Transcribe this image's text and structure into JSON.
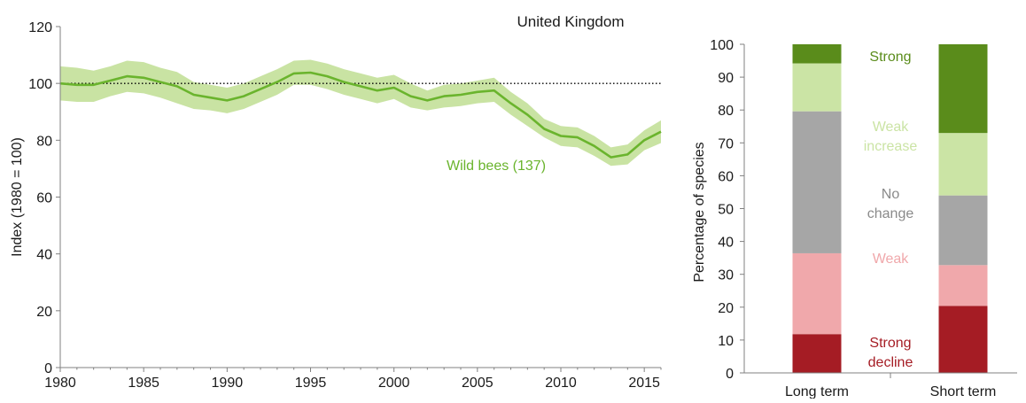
{
  "chart_data": [
    {
      "type": "line",
      "title": "United Kingdom",
      "xlabel": "",
      "ylabel": "Index (1980 = 100)",
      "xlim": [
        1980,
        2016
      ],
      "ylim": [
        0,
        120
      ],
      "x_ticks": [
        1980,
        1985,
        1990,
        1995,
        2000,
        2005,
        2010,
        2015
      ],
      "y_ticks": [
        0,
        20,
        40,
        60,
        80,
        100,
        120
      ],
      "reference_line": 100,
      "grid": false,
      "series": [
        {
          "name": "Wild bees (137)",
          "color": "#6ab42d",
          "band_color": "#c9e3a3",
          "x": [
            1980,
            1981,
            1982,
            1983,
            1984,
            1985,
            1986,
            1987,
            1988,
            1989,
            1990,
            1991,
            1992,
            1993,
            1994,
            1995,
            1996,
            1997,
            1998,
            1999,
            2000,
            2001,
            2002,
            2003,
            2004,
            2005,
            2006,
            2007,
            2008,
            2009,
            2010,
            2011,
            2012,
            2013,
            2014,
            2015,
            2016
          ],
          "y": [
            100,
            99.5,
            99.5,
            101,
            102.5,
            102,
            100.5,
            99,
            96,
            95,
            94,
            95.5,
            98,
            100.5,
            103.5,
            103.8,
            102.5,
            100.5,
            99,
            97.5,
            98.5,
            95.5,
            94,
            95.5,
            96,
            97,
            97.5,
            93,
            89,
            84,
            81.5,
            81,
            78,
            74,
            75,
            80,
            83
          ],
          "lower": [
            94,
            93.5,
            93.5,
            95.5,
            97,
            96.5,
            95,
            93,
            91,
            90.5,
            89.5,
            91,
            93.5,
            96,
            99.5,
            99.5,
            98,
            96,
            94.5,
            93,
            94.5,
            91.5,
            90.5,
            91.5,
            92,
            93,
            93.5,
            89,
            85,
            81,
            78,
            77.5,
            74.5,
            71,
            71.5,
            76.5,
            79
          ],
          "upper": [
            106,
            105.5,
            104.5,
            106,
            108,
            107.5,
            105.5,
            104,
            100.5,
            99.5,
            98.5,
            100,
            102.5,
            105,
            108,
            108.3,
            107,
            105,
            103.5,
            102,
            103,
            100,
            97.5,
            99.5,
            100,
            101,
            102,
            97,
            93,
            87.5,
            85,
            84.5,
            81.5,
            77.5,
            78.5,
            83.5,
            87
          ]
        }
      ]
    },
    {
      "type": "bar",
      "stacked": true,
      "xlabel": "",
      "ylabel": "Percentage of species",
      "ylim": [
        0,
        100
      ],
      "y_ticks": [
        0,
        10,
        20,
        30,
        40,
        50,
        60,
        70,
        80,
        90,
        100
      ],
      "categories": [
        "Long term",
        "Short term"
      ],
      "series": [
        {
          "name": "Strong decline",
          "color": "#a51c24",
          "values": [
            11.8,
            20.4
          ]
        },
        {
          "name": "Weak",
          "color": "#f0a8ab",
          "values": [
            24.6,
            12.4
          ]
        },
        {
          "name": "No change",
          "color": "#a6a6a6",
          "values": [
            43.2,
            21.2
          ]
        },
        {
          "name": "Weak increase",
          "color": "#cbe4a5",
          "values": [
            14.6,
            19.0
          ]
        },
        {
          "name": "Strong",
          "color": "#5a8c1b",
          "values": [
            5.8,
            27.0
          ]
        }
      ],
      "legend_labels": [
        {
          "lines": [
            "Strong"
          ],
          "color": "#5a8c1b"
        },
        {
          "lines": [
            "Weak",
            "increase"
          ],
          "color": "#cbe4a5"
        },
        {
          "lines": [
            "No",
            "change"
          ],
          "color": "#8a8a8a"
        },
        {
          "lines": [
            "Weak"
          ],
          "color": "#f0a8ab"
        },
        {
          "lines": [
            "Strong",
            "decline"
          ],
          "color": "#a51c24"
        }
      ]
    }
  ]
}
